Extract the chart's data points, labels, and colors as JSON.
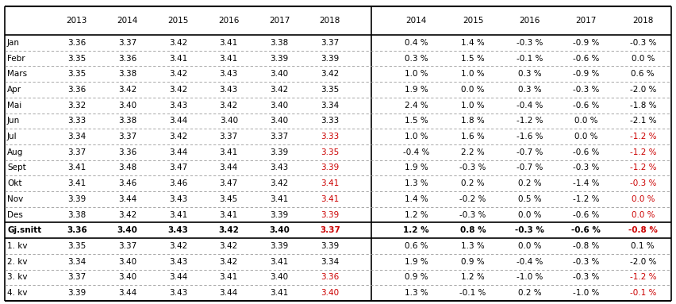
{
  "rows": [
    {
      "label": "Jan",
      "vals": [
        "3.36",
        "3.37",
        "3.42",
        "3.41",
        "3.38",
        "3.37"
      ],
      "pcts": [
        "0.4 %",
        "1.4 %",
        "-0.3 %",
        "-0.9 %",
        "-0.3 %"
      ],
      "red_val": [],
      "red_pct": []
    },
    {
      "label": "Febr",
      "vals": [
        "3.35",
        "3.36",
        "3.41",
        "3.41",
        "3.39",
        "3.39"
      ],
      "pcts": [
        "0.3 %",
        "1.5 %",
        "-0.1 %",
        "-0.6 %",
        "0.0 %"
      ],
      "red_val": [],
      "red_pct": []
    },
    {
      "label": "Mars",
      "vals": [
        "3.35",
        "3.38",
        "3.42",
        "3.43",
        "3.40",
        "3.42"
      ],
      "pcts": [
        "1.0 %",
        "1.0 %",
        "0.3 %",
        "-0.9 %",
        "0.6 %"
      ],
      "red_val": [],
      "red_pct": []
    },
    {
      "label": "Apr",
      "vals": [
        "3.36",
        "3.42",
        "3.42",
        "3.43",
        "3.42",
        "3.35"
      ],
      "pcts": [
        "1.9 %",
        "0.0 %",
        "0.3 %",
        "-0.3 %",
        "-2.0 %"
      ],
      "red_val": [],
      "red_pct": []
    },
    {
      "label": "Mai",
      "vals": [
        "3.32",
        "3.40",
        "3.43",
        "3.42",
        "3.40",
        "3.34"
      ],
      "pcts": [
        "2.4 %",
        "1.0 %",
        "-0.4 %",
        "-0.6 %",
        "-1.8 %"
      ],
      "red_val": [],
      "red_pct": []
    },
    {
      "label": "Jun",
      "vals": [
        "3.33",
        "3.38",
        "3.44",
        "3.40",
        "3.40",
        "3.33"
      ],
      "pcts": [
        "1.5 %",
        "1.8 %",
        "-1.2 %",
        "0.0 %",
        "-2.1 %"
      ],
      "red_val": [],
      "red_pct": []
    },
    {
      "label": "Jul",
      "vals": [
        "3.34",
        "3.37",
        "3.42",
        "3.37",
        "3.37",
        "3.33"
      ],
      "pcts": [
        "1.0 %",
        "1.6 %",
        "-1.6 %",
        "0.0 %",
        "-1.2 %"
      ],
      "red_val": [
        5
      ],
      "red_pct": [
        4
      ]
    },
    {
      "label": "Aug",
      "vals": [
        "3.37",
        "3.36",
        "3.44",
        "3.41",
        "3.39",
        "3.35"
      ],
      "pcts": [
        "-0.4 %",
        "2.2 %",
        "-0.7 %",
        "-0.6 %",
        "-1.2 %"
      ],
      "red_val": [
        5
      ],
      "red_pct": [
        4
      ]
    },
    {
      "label": "Sept",
      "vals": [
        "3.41",
        "3.48",
        "3.47",
        "3.44",
        "3.43",
        "3.39"
      ],
      "pcts": [
        "1.9 %",
        "-0.3 %",
        "-0.7 %",
        "-0.3 %",
        "-1.2 %"
      ],
      "red_val": [
        5
      ],
      "red_pct": [
        4
      ]
    },
    {
      "label": "Okt",
      "vals": [
        "3.41",
        "3.46",
        "3.46",
        "3.47",
        "3.42",
        "3.41"
      ],
      "pcts": [
        "1.3 %",
        "0.2 %",
        "0.2 %",
        "-1.4 %",
        "-0.3 %"
      ],
      "red_val": [
        5
      ],
      "red_pct": [
        4
      ]
    },
    {
      "label": "Nov",
      "vals": [
        "3.39",
        "3.44",
        "3.43",
        "3.45",
        "3.41",
        "3.41"
      ],
      "pcts": [
        "1.4 %",
        "-0.2 %",
        "0.5 %",
        "-1.2 %",
        "0.0 %"
      ],
      "red_val": [
        5
      ],
      "red_pct": [
        4
      ]
    },
    {
      "label": "Des",
      "vals": [
        "3.38",
        "3.42",
        "3.41",
        "3.41",
        "3.39",
        "3.39"
      ],
      "pcts": [
        "1.2 %",
        "-0.3 %",
        "0.0 %",
        "-0.6 %",
        "0.0 %"
      ],
      "red_val": [
        5
      ],
      "red_pct": [
        4
      ]
    },
    {
      "label": "Gj.snitt",
      "vals": [
        "3.36",
        "3.40",
        "3.43",
        "3.42",
        "3.40",
        "3.37"
      ],
      "pcts": [
        "1.2 %",
        "0.8 %",
        "-0.3 %",
        "-0.6 %",
        "-0.8 %"
      ],
      "red_val": [
        5
      ],
      "red_pct": [
        4
      ],
      "bold": true
    },
    {
      "label": "1. kv",
      "vals": [
        "3.35",
        "3.37",
        "3.42",
        "3.42",
        "3.39",
        "3.39"
      ],
      "pcts": [
        "0.6 %",
        "1.3 %",
        "0.0 %",
        "-0.8 %",
        "0.1 %"
      ],
      "red_val": [],
      "red_pct": []
    },
    {
      "label": "2. kv",
      "vals": [
        "3.34",
        "3.40",
        "3.43",
        "3.42",
        "3.41",
        "3.34"
      ],
      "pcts": [
        "1.9 %",
        "0.9 %",
        "-0.4 %",
        "-0.3 %",
        "-2.0 %"
      ],
      "red_val": [],
      "red_pct": []
    },
    {
      "label": "3. kv",
      "vals": [
        "3.37",
        "3.40",
        "3.44",
        "3.41",
        "3.40",
        "3.36"
      ],
      "pcts": [
        "0.9 %",
        "1.2 %",
        "-1.0 %",
        "-0.3 %",
        "-1.2 %"
      ],
      "red_val": [
        5
      ],
      "red_pct": [
        4
      ]
    },
    {
      "label": "4. kv",
      "vals": [
        "3.39",
        "3.44",
        "3.43",
        "3.44",
        "3.41",
        "3.40"
      ],
      "pcts": [
        "1.3 %",
        "-0.1 %",
        "0.2 %",
        "-1.0 %",
        "-0.1 %"
      ],
      "red_val": [
        5
      ],
      "red_pct": [
        4
      ]
    }
  ],
  "val_headers": [
    "2013",
    "2014",
    "2015",
    "2016",
    "2017",
    "2018"
  ],
  "pct_headers": [
    "2014",
    "2015",
    "2016",
    "2017",
    "2018"
  ],
  "red_color": "#CC0000",
  "black_color": "#000000",
  "figsize": [
    8.52,
    3.83
  ],
  "dpi": 100
}
